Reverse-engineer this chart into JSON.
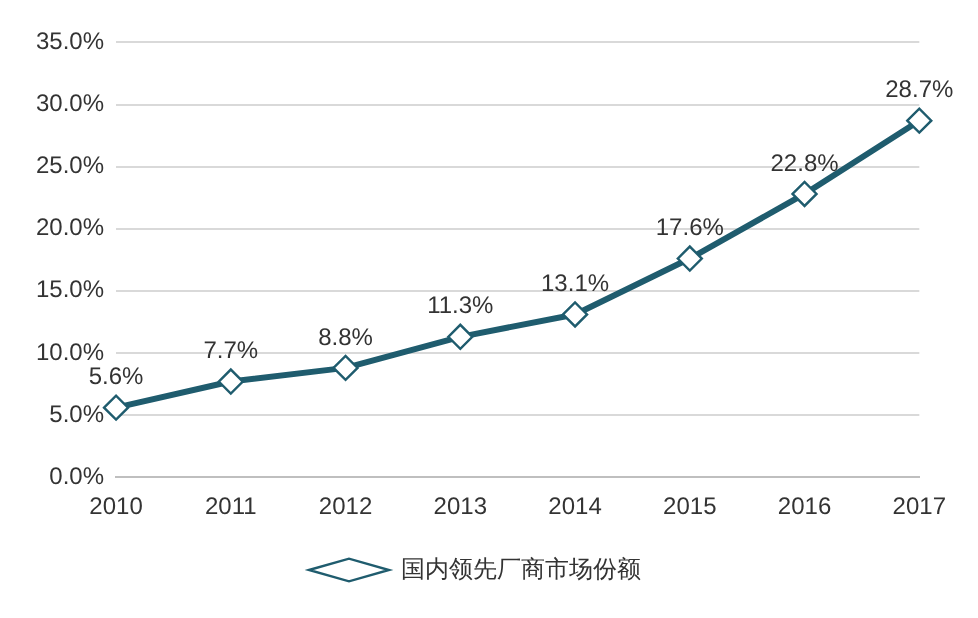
{
  "chart_data": {
    "type": "line",
    "categories": [
      "2010",
      "2011",
      "2012",
      "2013",
      "2014",
      "2015",
      "2016",
      "2017"
    ],
    "series": [
      {
        "name": "国内领先厂商市场份额",
        "color": "#1f5c6e",
        "values": [
          5.6,
          7.7,
          8.8,
          11.3,
          13.1,
          17.6,
          22.8,
          28.7
        ],
        "value_labels": [
          "5.6%",
          "7.7%",
          "8.8%",
          "11.3%",
          "13.1%",
          "17.6%",
          "22.8%",
          "28.7%"
        ]
      }
    ],
    "ylim": [
      0,
      35
    ],
    "yticks": [
      {
        "value": 0,
        "label": "0.0%"
      },
      {
        "value": 5,
        "label": "5.0%"
      },
      {
        "value": 10,
        "label": "10.0%"
      },
      {
        "value": 15,
        "label": "15.0%"
      },
      {
        "value": 20,
        "label": "20.0%"
      },
      {
        "value": 25,
        "label": "25.0%"
      },
      {
        "value": 30,
        "label": "30.0%"
      },
      {
        "value": 35,
        "label": "35.0%"
      }
    ],
    "grid": "y",
    "legend": "bottom",
    "marker": "diamond",
    "line_style": "solid"
  }
}
